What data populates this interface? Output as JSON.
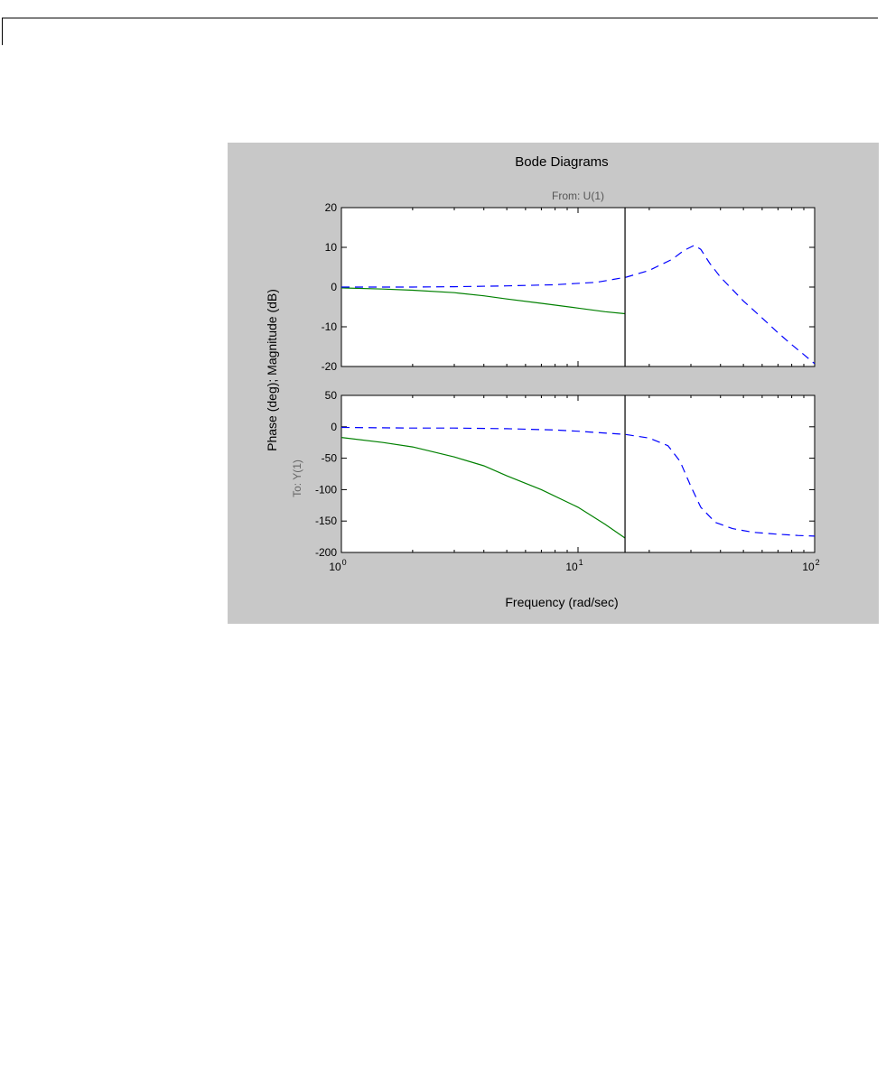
{
  "chart_data": {
    "type": "line",
    "title": "Bode Diagrams",
    "from_label": "From: U(1)",
    "to_label": "To: Y(1)",
    "xlabel": "Frequency (rad/sec)",
    "ylabel": "Phase (deg); Magnitude (dB)",
    "xscale": "log",
    "xlim": [
      1,
      100
    ],
    "x_ticks": [
      {
        "base": "10",
        "exp": "0"
      },
      {
        "base": "10",
        "exp": "1"
      },
      {
        "base": "10",
        "exp": "2"
      }
    ],
    "vertical_marker_x": 15.8,
    "panels": [
      {
        "name": "magnitude",
        "ylim": [
          -20,
          20
        ],
        "y_ticks": [
          "20",
          "10",
          "0",
          "-10",
          "-20"
        ],
        "series": [
          {
            "style": "solid",
            "color": "#008000",
            "x": [
              1,
              1.5,
              2,
              3,
              4,
              5,
              7,
              10,
              13,
              15.8
            ],
            "y": [
              -0.2,
              -0.5,
              -0.8,
              -1.4,
              -2.2,
              -3.0,
              -4.1,
              -5.3,
              -6.2,
              -6.7
            ]
          },
          {
            "style": "dashed",
            "color": "#0000ff",
            "x": [
              1,
              2,
              3,
              5,
              8,
              12,
              16,
              20,
              25,
              28,
              31,
              33,
              36,
              40,
              50,
              60,
              70,
              80,
              90,
              100
            ],
            "y": [
              0,
              0,
              0.1,
              0.3,
              0.6,
              1.2,
              2.5,
              4.2,
              7.0,
              9.2,
              10.5,
              9.5,
              6.0,
              2.5,
              -3.5,
              -7.8,
              -11.5,
              -14.5,
              -17.0,
              -19.3
            ]
          }
        ]
      },
      {
        "name": "phase",
        "ylim": [
          -200,
          50
        ],
        "y_ticks": [
          "50",
          "0",
          "-50",
          "-100",
          "-150",
          "-200"
        ],
        "series": [
          {
            "style": "solid",
            "color": "#008000",
            "x": [
              1,
              1.5,
              2,
              3,
              4,
              5,
              7,
              10,
              13,
              15.8
            ],
            "y": [
              -17,
              -25,
              -32,
              -48,
              -62,
              -78,
              -100,
              -128,
              -155,
              -177
            ]
          },
          {
            "style": "dashed",
            "color": "#0000ff",
            "x": [
              1,
              2,
              3,
              5,
              8,
              10,
              12,
              15.8,
              20,
              24,
              27,
              30,
              33,
              38,
              45,
              55,
              70,
              85,
              100
            ],
            "y": [
              -1,
              -2,
              -2,
              -3,
              -5,
              -7,
              -9,
              -12,
              -18,
              -30,
              -55,
              -95,
              -128,
              -152,
              -162,
              -168,
              -171,
              -173,
              -174
            ]
          }
        ]
      }
    ]
  }
}
